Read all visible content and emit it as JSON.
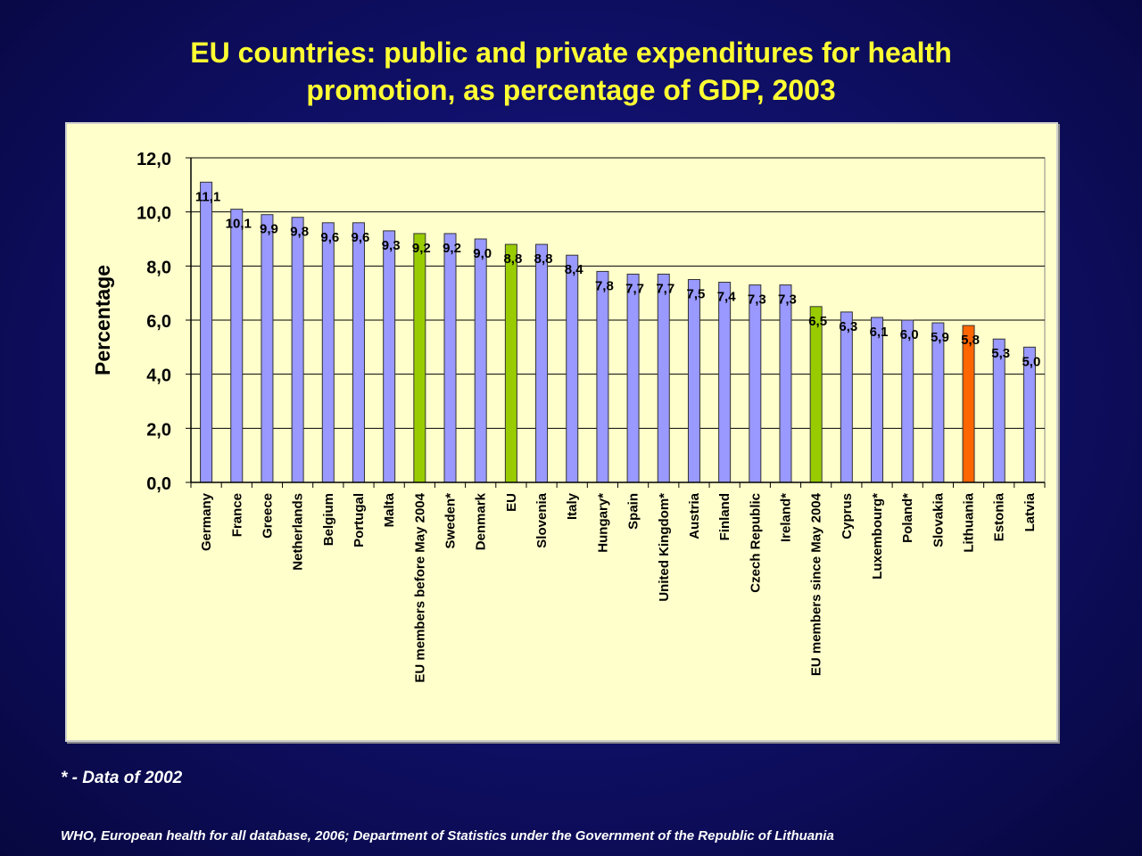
{
  "title_line1": "EU countries: public and private expenditures for health",
  "title_line2": "promotion, as percentage of GDP, 2003",
  "footnote": "* - Data of 2002",
  "source": "WHO, European health for all database, 2006; Department of Statistics under the Government of the Republic of Lithuania",
  "colors": {
    "default_bar": "#9999ff",
    "eu_aggregate_bar": "#99cc00",
    "lithuania_bar": "#ff6600",
    "plot_background": "#ffffcc"
  },
  "chart_data": {
    "type": "bar",
    "title": "EU countries: public and private expenditures for health promotion, as percentage of GDP, 2003",
    "xlabel": "",
    "ylabel": "Percentage",
    "ylim": [
      0,
      12
    ],
    "yticks": [
      "0,0",
      "2,0",
      "4,0",
      "6,0",
      "8,0",
      "10,0",
      "12,0"
    ],
    "grid": true,
    "legend": "none",
    "categories": [
      "Germany",
      "France",
      "Greece",
      "Netherlands",
      "Belgium",
      "Portugal",
      "Malta",
      "EU members before May 2004",
      "Sweden*",
      "Denmark",
      "EU",
      "Slovenia",
      "Italy",
      "Hungary*",
      "Spain",
      "United Kingdom*",
      "Austria",
      "Finland",
      "Czech Republic",
      "Ireland*",
      "EU members since May 2004",
      "Cyprus",
      "Luxembourg*",
      "Poland*",
      "Slovakia",
      "Lithuania",
      "Estonia",
      "Latvia"
    ],
    "values": [
      11.1,
      10.1,
      9.9,
      9.8,
      9.6,
      9.6,
      9.3,
      9.2,
      9.2,
      9.0,
      8.8,
      8.8,
      8.4,
      7.8,
      7.7,
      7.7,
      7.5,
      7.4,
      7.3,
      7.3,
      6.5,
      6.3,
      6.1,
      6.0,
      5.9,
      5.8,
      5.3,
      5.0
    ],
    "value_labels": [
      "11,1",
      "10,1",
      "9,9",
      "9,8",
      "9,6",
      "9,6",
      "9,3",
      "9,2",
      "9,2",
      "9,0",
      "8,8",
      "8,8",
      "8,4",
      "7,8",
      "7,7",
      "7,7",
      "7,5",
      "7,4",
      "7,3",
      "7,3",
      "6,5",
      "6,3",
      "6,1",
      "6,0",
      "5,9",
      "5,8",
      "5,3",
      "5,0"
    ],
    "bar_colors": [
      "default",
      "default",
      "default",
      "default",
      "default",
      "default",
      "default",
      "eu_aggregate",
      "default",
      "default",
      "eu_aggregate",
      "default",
      "default",
      "default",
      "default",
      "default",
      "default",
      "default",
      "default",
      "default",
      "eu_aggregate",
      "default",
      "default",
      "default",
      "default",
      "lithuania",
      "default",
      "default"
    ]
  }
}
